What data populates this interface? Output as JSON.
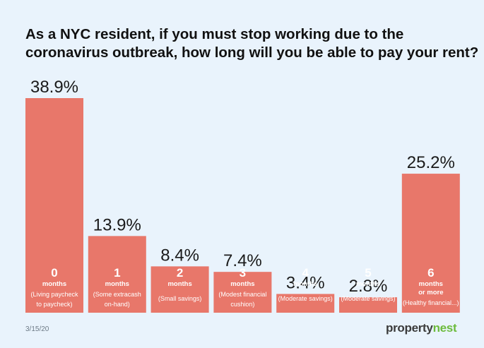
{
  "chart_data": {
    "type": "bar",
    "title_lines": [
      "As a NYC resident, if you must stop working due to the",
      "coronavirus outbreak, how long will you be able to pay your rent?"
    ],
    "unit": "%",
    "bar_color": "#e8776a",
    "background_color": "#e9f3fc",
    "ylim": [
      0,
      38.9
    ],
    "grid": false,
    "legend": "none",
    "categories": [
      {
        "number": "0",
        "unit_label": "months",
        "desc": [
          "(Living paycheck",
          "to paycheck)"
        ],
        "value": 38.9,
        "value_label": "38.9%"
      },
      {
        "number": "1",
        "unit_label": "months",
        "desc": [
          "(Some extracash",
          "on-hand)"
        ],
        "value": 13.9,
        "value_label": "13.9%"
      },
      {
        "number": "2",
        "unit_label": "months",
        "desc": [
          "(Small savings)"
        ],
        "value": 8.4,
        "value_label": "8.4%"
      },
      {
        "number": "3",
        "unit_label": "months",
        "desc": [
          "(Modest financial",
          "cushion)"
        ],
        "value": 7.4,
        "value_label": "7.4%"
      },
      {
        "number": "4",
        "unit_label": "months",
        "desc": [
          "(Moderate savings)"
        ],
        "value": 3.4,
        "value_label": "3.4%"
      },
      {
        "number": "5",
        "unit_label": "months",
        "desc": [
          "(Moderate savings)"
        ],
        "value": 2.8,
        "value_label": "2.8%"
      },
      {
        "number": "6",
        "unit_label": "months",
        "unit_label_2": "or more",
        "desc": [
          "(Healthy financial...)"
        ],
        "value": 25.2,
        "value_label": "25.2%"
      }
    ]
  },
  "footer": {
    "date": "3/15/20",
    "brand_part1": "property",
    "brand_part2": "nest",
    "brand_accent_color": "#6cbb3c"
  }
}
